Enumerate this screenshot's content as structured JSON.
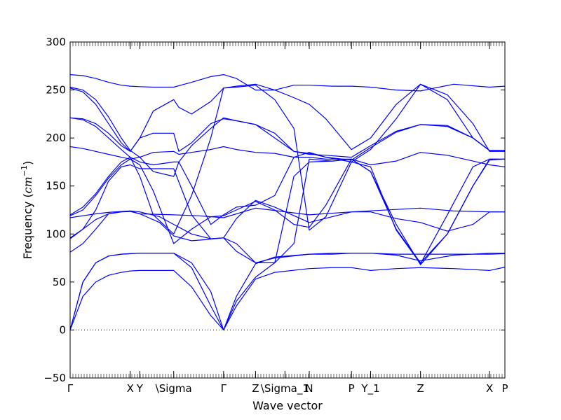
{
  "chart_data": {
    "type": "line",
    "title": "",
    "xlabel": "Wave vector",
    "ylabel": "Frequency",
    "ylabel_unit": "cm",
    "ylabel_unit_exp": "−1",
    "ylim": [
      -50,
      300
    ],
    "yticks": [
      -50,
      0,
      50,
      100,
      150,
      200,
      250,
      300
    ],
    "ytick_labels": [
      "−50",
      "0",
      "50",
      "100",
      "150",
      "200",
      "250",
      "300"
    ],
    "xlim": [
      0,
      3.4
    ],
    "xticks": [
      {
        "label": "Γ",
        "x": 0.0
      },
      {
        "label": "X",
        "x": 0.47
      },
      {
        "label": "Y",
        "x": 0.545
      },
      {
        "label": "\\Sigma",
        "x": 0.81
      },
      {
        "label": "Γ",
        "x": 1.2
      },
      {
        "label": "Z",
        "x": 1.45
      },
      {
        "label": "\\Sigma_1",
        "x": 1.68
      },
      {
        "label": "N",
        "x": 1.87
      },
      {
        "label": "P",
        "x": 2.2
      },
      {
        "label": "Y_1",
        "x": 2.35
      },
      {
        "label": "Z",
        "x": 2.74
      },
      {
        "label": "X",
        "x": 3.28
      },
      {
        "label": "P",
        "x": 3.4
      }
    ],
    "zero_line": true,
    "line_color": "#0000ff",
    "series": [
      {
        "x": [
          0,
          0.1,
          0.2,
          0.3,
          0.4,
          0.47,
          0.545,
          0.81,
          0.95,
          1.1,
          1.2,
          1.3,
          1.45,
          1.6,
          1.87,
          2.05,
          2.2,
          2.35,
          2.55,
          2.74,
          3.0,
          3.28,
          3.4
        ],
        "y": [
          0,
          35,
          50,
          57,
          60,
          61.5,
          62,
          62,
          45,
          15,
          0,
          25,
          53,
          60,
          64,
          65,
          65,
          62,
          64,
          65,
          64,
          62,
          65.5
        ]
      },
      {
        "x": [
          0,
          0.1,
          0.2,
          0.3,
          0.4,
          0.47,
          0.545,
          0.81,
          0.95,
          1.1,
          1.2,
          1.3,
          1.45,
          1.6,
          1.87,
          2.05,
          2.2,
          2.35,
          2.55,
          2.74,
          3.0,
          3.28,
          3.4
        ],
        "y": [
          0,
          50,
          70,
          77,
          79,
          79.5,
          80,
          80,
          65,
          25,
          0,
          35,
          69,
          76,
          79,
          80,
          80,
          80,
          79,
          79,
          79,
          79,
          79.5
        ]
      },
      {
        "x": [
          0,
          0.1,
          0.2,
          0.3,
          0.4,
          0.47,
          0.545,
          0.81,
          0.95,
          1.1,
          1.2
        ],
        "y": [
          0,
          50,
          70,
          77,
          79,
          79.5,
          80,
          80,
          70,
          40,
          0
        ]
      },
      {
        "x": [
          0,
          0.1,
          0.2,
          0.3,
          0.4,
          0.47,
          0.545,
          0.81,
          1.0,
          1.2,
          1.45,
          1.87,
          2.2,
          2.74,
          3.0,
          3.28,
          3.4
        ],
        "y": [
          117,
          119,
          121,
          122.5,
          123.5,
          124,
          121,
          120,
          119,
          117,
          127,
          120,
          123,
          127,
          124,
          123,
          123
        ]
      },
      {
        "x": [
          0,
          0.1,
          0.2,
          0.3,
          0.4,
          0.47,
          0.545,
          0.7,
          0.81,
          0.95,
          1.05,
          1.2,
          1.3,
          1.45,
          1.6,
          1.87,
          2.05,
          2.2,
          2.35,
          2.55,
          2.74,
          3.0,
          3.28,
          3.4
        ],
        "y": [
          95,
          105,
          115,
          121,
          123,
          123.5,
          121,
          112,
          98,
          93,
          94,
          96,
          82,
          70,
          75,
          79,
          79,
          80,
          80,
          78,
          72,
          78,
          80,
          80
        ]
      },
      {
        "x": [
          0,
          0.1,
          0.2,
          0.3,
          0.4,
          0.47,
          0.545,
          0.7,
          0.81,
          0.95,
          1.1,
          1.2,
          1.3,
          1.45,
          1.6,
          1.87,
          2.05,
          2.2,
          2.35,
          2.55,
          2.74,
          2.95,
          3.15,
          3.28,
          3.4
        ],
        "y": [
          81,
          90,
          105,
          121,
          123,
          124,
          123,
          118,
          110,
          100,
          95,
          96,
          116,
          135,
          128,
          112,
          118,
          123,
          123,
          116,
          112,
          103,
          110,
          123,
          123
        ]
      },
      {
        "x": [
          0,
          0.1,
          0.2,
          0.3,
          0.4,
          0.47,
          0.545,
          0.65,
          0.81,
          0.95,
          1.1,
          1.2,
          1.3,
          1.45,
          1.6,
          1.75,
          1.87,
          2.0,
          2.2,
          2.35,
          2.55,
          2.74,
          2.95,
          3.15,
          3.28,
          3.4
        ],
        "y": [
          119,
          125,
          140,
          158,
          172,
          178,
          172,
          145,
          90,
          105,
          118,
          119,
          125,
          134,
          125,
          110,
          107,
          130,
          178,
          165,
          105,
          70,
          100,
          150,
          177,
          178
        ]
      },
      {
        "x": [
          0,
          0.1,
          0.2,
          0.3,
          0.4,
          0.47,
          0.545,
          0.65,
          0.81,
          0.95,
          1.1,
          1.2,
          1.3,
          1.45,
          1.6,
          1.75,
          1.87,
          2.0,
          2.2,
          2.35,
          2.55,
          2.74,
          2.95,
          3.15,
          3.28,
          3.4
        ],
        "y": [
          120,
          128,
          142,
          160,
          175,
          180,
          160,
          120,
          100,
          140,
          200,
          252,
          253,
          255,
          240,
          210,
          104,
          118,
          175,
          170,
          104,
          69,
          120,
          170,
          178,
          178
        ]
      },
      {
        "x": [
          0,
          0.1,
          0.2,
          0.3,
          0.4,
          0.47,
          0.545,
          0.65,
          0.81,
          0.85,
          0.95,
          1.1,
          1.2,
          1.3,
          1.45,
          1.6,
          1.75,
          1.87,
          2.0,
          2.2,
          2.35,
          2.55,
          2.74,
          2.95,
          3.15,
          3.28,
          3.4
        ],
        "y": [
          191,
          189,
          186,
          183,
          180,
          178,
          180,
          185,
          186,
          183,
          185,
          188,
          191,
          188,
          185,
          184,
          180,
          180,
          178,
          178,
          172,
          176,
          185,
          182,
          176,
          172,
          170
        ]
      },
      {
        "x": [
          0,
          0.1,
          0.2,
          0.3,
          0.4,
          0.47,
          0.545,
          0.65,
          0.81,
          0.85,
          0.95,
          1.1,
          1.2,
          1.3,
          1.45,
          1.6,
          1.75,
          1.87,
          2.0,
          2.2,
          2.35,
          2.55,
          2.74,
          2.95,
          3.15,
          3.28,
          3.4
        ],
        "y": [
          221,
          219,
          212,
          200,
          188,
          180,
          175,
          172,
          175,
          175,
          192,
          210,
          221,
          218,
          214,
          205,
          186,
          184,
          180,
          177,
          190,
          206,
          214,
          212,
          200,
          187,
          187
        ]
      },
      {
        "x": [
          0,
          0.1,
          0.2,
          0.3,
          0.4,
          0.47,
          0.545,
          0.65,
          0.81,
          0.85,
          0.95,
          1.1,
          1.2,
          1.3,
          1.45,
          1.6,
          1.75,
          1.87,
          2.0,
          2.2,
          2.35,
          2.55,
          2.74,
          2.95,
          3.15,
          3.28,
          3.4
        ],
        "y": [
          221,
          220,
          215,
          205,
          192,
          186,
          200,
          205,
          205,
          186,
          195,
          215,
          220,
          218,
          214,
          200,
          186,
          183,
          182,
          180,
          192,
          207,
          214,
          213,
          200,
          187,
          187
        ]
      },
      {
        "x": [
          0,
          0.1,
          0.2,
          0.3,
          0.4,
          0.47,
          0.545,
          0.65,
          0.81,
          0.85,
          0.95,
          1.1,
          1.2,
          1.3,
          1.45,
          1.6,
          1.75,
          1.87,
          2.0,
          2.2,
          2.35,
          2.55,
          2.74,
          2.95,
          3.15,
          3.28,
          3.4
        ],
        "y": [
          252,
          248,
          235,
          215,
          195,
          186,
          200,
          228,
          240,
          232,
          225,
          238,
          252,
          254,
          256,
          250,
          242,
          235,
          220,
          188,
          200,
          235,
          256,
          245,
          215,
          186,
          186
        ]
      },
      {
        "x": [
          0,
          0.1,
          0.2,
          0.3,
          0.4,
          0.47,
          0.545,
          0.65,
          0.81,
          0.85,
          0.95,
          1.1,
          1.2,
          1.3,
          1.45,
          1.6,
          1.75,
          1.87,
          2.0,
          2.2,
          2.35,
          2.55,
          2.74,
          2.95,
          3.15,
          3.28,
          3.4
        ],
        "y": [
          253,
          250,
          240,
          222,
          200,
          187,
          180,
          165,
          160,
          175,
          150,
          110,
          120,
          128,
          130,
          140,
          180,
          185,
          180,
          175,
          188,
          220,
          256,
          240,
          200,
          187,
          187
        ]
      },
      {
        "x": [
          0,
          0.1,
          0.2,
          0.3,
          0.4,
          0.47,
          0.545,
          0.65,
          0.81,
          0.95,
          1.1,
          1.2,
          1.3,
          1.45,
          1.6,
          1.75,
          1.87,
          2.05,
          2.2,
          2.35,
          2.55,
          2.74,
          3.0,
          3.28,
          3.4
        ],
        "y": [
          266,
          265,
          262,
          258,
          255,
          254,
          253.5,
          253,
          253,
          258,
          264,
          266,
          262,
          250,
          250,
          255,
          255,
          254,
          254,
          253,
          250,
          249,
          256,
          253,
          254
        ]
      },
      {
        "x": [
          0,
          0.1,
          0.2,
          0.3,
          0.4,
          0.47,
          0.545,
          0.65,
          0.81,
          0.95,
          1.1,
          1.2,
          1.3,
          1.45,
          1.6,
          1.75,
          1.87,
          2.05,
          2.2,
          2.35,
          2.55,
          2.74,
          2.95,
          3.15,
          3.28,
          3.4
        ],
        "y": [
          96,
          105,
          125,
          155,
          170,
          172,
          168,
          168,
          168,
          120,
          95,
          96,
          90,
          70,
          70,
          90,
          178,
          176,
          178,
          165,
          110,
          68,
          100,
          150,
          178,
          178
        ]
      },
      {
        "x": [
          1.2,
          1.3,
          1.45,
          1.6,
          1.75,
          1.87,
          2.05,
          2.2
        ],
        "y": [
          0,
          30,
          55,
          70,
          160,
          175,
          176,
          178
        ]
      }
    ]
  }
}
